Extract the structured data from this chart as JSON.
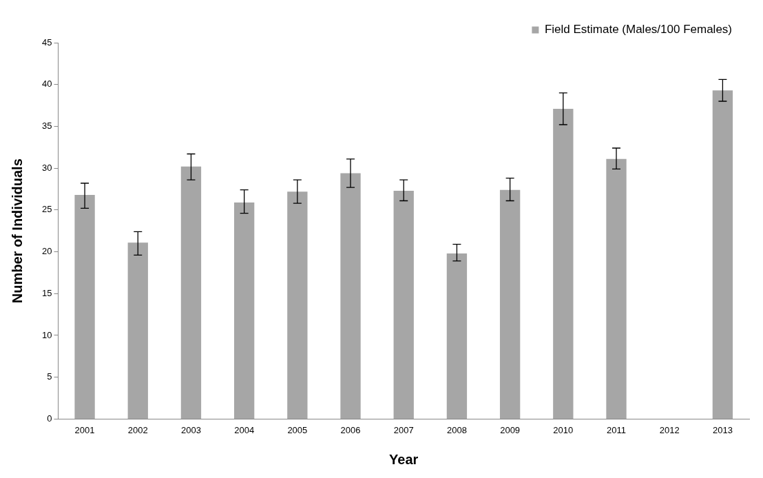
{
  "chart_data": {
    "type": "bar",
    "xlabel": "Year",
    "ylabel": "Number of Individuals",
    "categories": [
      "2001",
      "2002",
      "2003",
      "2004",
      "2005",
      "2006",
      "2007",
      "2008",
      "2009",
      "2010",
      "2011",
      "2012",
      "2013"
    ],
    "series": [
      {
        "name": "Field Estimate (Males/100 Females)",
        "color": "#a6a6a6",
        "values": [
          26.8,
          21.1,
          30.2,
          25.9,
          27.2,
          29.4,
          27.3,
          19.8,
          27.4,
          37.1,
          31.1,
          null,
          39.3
        ],
        "errors": [
          [
            25.2,
            28.2
          ],
          [
            19.6,
            22.4
          ],
          [
            28.6,
            31.7
          ],
          [
            24.6,
            27.4
          ],
          [
            25.8,
            28.6
          ],
          [
            27.7,
            31.1
          ],
          [
            26.1,
            28.6
          ],
          [
            18.9,
            20.9
          ],
          [
            26.1,
            28.8
          ],
          [
            35.2,
            39.0
          ],
          [
            29.9,
            32.4
          ],
          null,
          [
            38.0,
            40.6
          ]
        ]
      }
    ],
    "ylim": [
      0,
      45
    ],
    "yticks": [
      0,
      5,
      10,
      15,
      20,
      25,
      30,
      35,
      40,
      45
    ],
    "grid": false,
    "legend": "top right"
  }
}
